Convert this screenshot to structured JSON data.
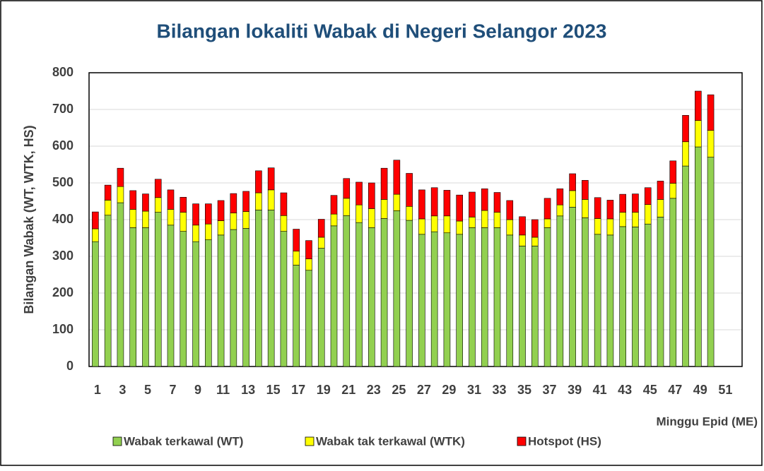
{
  "chart_data": {
    "type": "stacked_bar",
    "title": "Bilangan lokaliti Wabak di Negeri Selangor 2023",
    "y_label": "Bilangan  Wabak (WT, WTK, HS)",
    "x_label": "Minggu Epid (ME)",
    "categories": [
      1,
      null,
      3,
      null,
      5,
      null,
      7,
      null,
      9,
      null,
      11,
      null,
      13,
      null,
      15,
      null,
      17,
      null,
      19,
      null,
      21,
      null,
      23,
      null,
      25,
      null,
      27,
      null,
      29,
      null,
      31,
      null,
      33,
      null,
      35,
      null,
      37,
      null,
      39,
      null,
      41,
      null,
      43,
      null,
      45,
      null,
      47,
      null,
      49,
      null,
      51,
      null
    ],
    "series": [
      {
        "name": "Wabak terkawal (WT)",
        "color": "#92d050",
        "values": [
          340,
          412,
          446,
          378,
          378,
          420,
          385,
          368,
          340,
          345,
          358,
          373,
          376,
          426,
          426,
          368,
          276,
          262,
          322,
          383,
          411,
          392,
          378,
          403,
          424,
          398,
          360,
          367,
          364,
          360,
          378,
          378,
          378,
          358,
          328,
          328,
          378,
          410,
          434,
          405,
          360,
          358,
          381,
          380,
          388,
          407,
          458,
          546,
          598,
          570,
          null,
          null
        ]
      },
      {
        "name": "Wabak tak terkawal (WTK)",
        "color": "#ffff00",
        "values": [
          35,
          41,
          44,
          50,
          45,
          40,
          43,
          52,
          45,
          43,
          39,
          45,
          46,
          47,
          55,
          43,
          38,
          31,
          30,
          32,
          47,
          48,
          52,
          52,
          45,
          38,
          42,
          43,
          46,
          36,
          29,
          47,
          42,
          42,
          30,
          24,
          24,
          30,
          45,
          50,
          43,
          44,
          39,
          40,
          53,
          48,
          41,
          66,
          72,
          73,
          null,
          null
        ]
      },
      {
        "name": "Hotspot (HS)",
        "color": "#ff0000",
        "values": [
          46,
          41,
          50,
          51,
          47,
          50,
          53,
          41,
          58,
          55,
          55,
          53,
          55,
          60,
          60,
          62,
          60,
          50,
          49,
          51,
          54,
          62,
          70,
          85,
          93,
          90,
          79,
          77,
          70,
          71,
          68,
          59,
          54,
          52,
          50,
          48,
          56,
          44,
          46,
          52,
          57,
          51,
          49,
          50,
          46,
          50,
          61,
          72,
          80,
          97,
          null,
          null
        ]
      }
    ],
    "ylim": [
      0,
      800
    ],
    "yticks": [
      0,
      100,
      200,
      300,
      400,
      500,
      600,
      700,
      800
    ],
    "grid": true
  }
}
